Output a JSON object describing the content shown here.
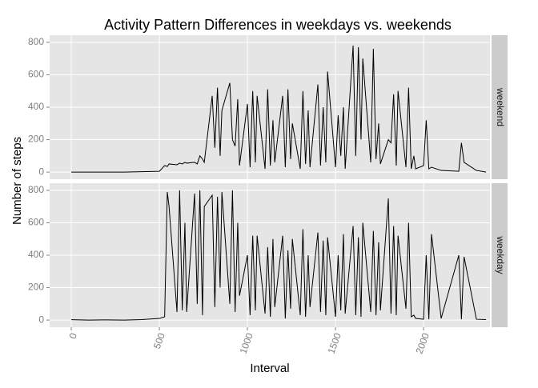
{
  "chart_data": {
    "type": "line",
    "title": "Activity Pattern Differences in weekdays vs. weekends",
    "x_label": "Interval",
    "y_label": "Number of steps",
    "x": [
      0,
      100,
      200,
      300,
      400,
      500,
      530,
      545,
      555,
      600,
      615,
      630,
      645,
      655,
      700,
      715,
      730,
      745,
      755,
      800,
      815,
      830,
      845,
      855,
      900,
      915,
      930,
      945,
      955,
      1000,
      1015,
      1030,
      1045,
      1055,
      1100,
      1115,
      1130,
      1145,
      1155,
      1200,
      1215,
      1230,
      1245,
      1255,
      1300,
      1315,
      1330,
      1345,
      1355,
      1400,
      1415,
      1430,
      1445,
      1455,
      1500,
      1515,
      1530,
      1545,
      1555,
      1600,
      1615,
      1630,
      1645,
      1655,
      1700,
      1715,
      1730,
      1745,
      1755,
      1800,
      1815,
      1830,
      1845,
      1855,
      1900,
      1915,
      1930,
      1945,
      1955,
      2000,
      2015,
      2030,
      2045,
      2100,
      2200,
      2215,
      2230,
      2300,
      2355
    ],
    "series": [
      {
        "name": "weekend",
        "color": "#000000",
        "values": [
          0,
          0,
          0,
          0,
          2,
          5,
          40,
          35,
          50,
          45,
          55,
          50,
          60,
          55,
          60,
          50,
          100,
          80,
          60,
          470,
          150,
          520,
          100,
          380,
          550,
          200,
          160,
          450,
          40,
          420,
          30,
          500,
          60,
          470,
          20,
          510,
          40,
          320,
          60,
          470,
          30,
          510,
          80,
          300,
          20,
          500,
          50,
          380,
          30,
          540,
          40,
          400,
          60,
          620,
          30,
          350,
          100,
          400,
          20,
          780,
          100,
          770,
          200,
          700,
          60,
          760,
          80,
          300,
          50,
          200,
          180,
          480,
          40,
          500,
          30,
          520,
          20,
          100,
          20,
          40,
          320,
          20,
          30,
          10,
          5,
          180,
          60,
          10,
          0
        ]
      },
      {
        "name": "weekday",
        "color": "#000000",
        "values": [
          2,
          0,
          1,
          0,
          3,
          10,
          20,
          790,
          700,
          50,
          800,
          60,
          600,
          50,
          780,
          100,
          800,
          30,
          700,
          770,
          80,
          760,
          200,
          790,
          100,
          800,
          50,
          600,
          150,
          400,
          30,
          520,
          60,
          520,
          40,
          450,
          20,
          500,
          80,
          520,
          10,
          430,
          70,
          500,
          30,
          560,
          20,
          400,
          80,
          540,
          50,
          490,
          30,
          510,
          20,
          400,
          60,
          530,
          40,
          580,
          30,
          510,
          20,
          600,
          50,
          550,
          30,
          480,
          60,
          750,
          40,
          580,
          30,
          520,
          70,
          600,
          20,
          30,
          10,
          5,
          400,
          5,
          530,
          10,
          400,
          5,
          390,
          5,
          3
        ]
      }
    ],
    "xlim": [
      -123,
      2377
    ],
    "xticks": [
      0,
      500,
      1000,
      1500,
      2000
    ],
    "ylim": [
      -44,
      844
    ],
    "yticks": [
      0,
      200,
      400,
      600,
      800
    ],
    "grid": true
  }
}
